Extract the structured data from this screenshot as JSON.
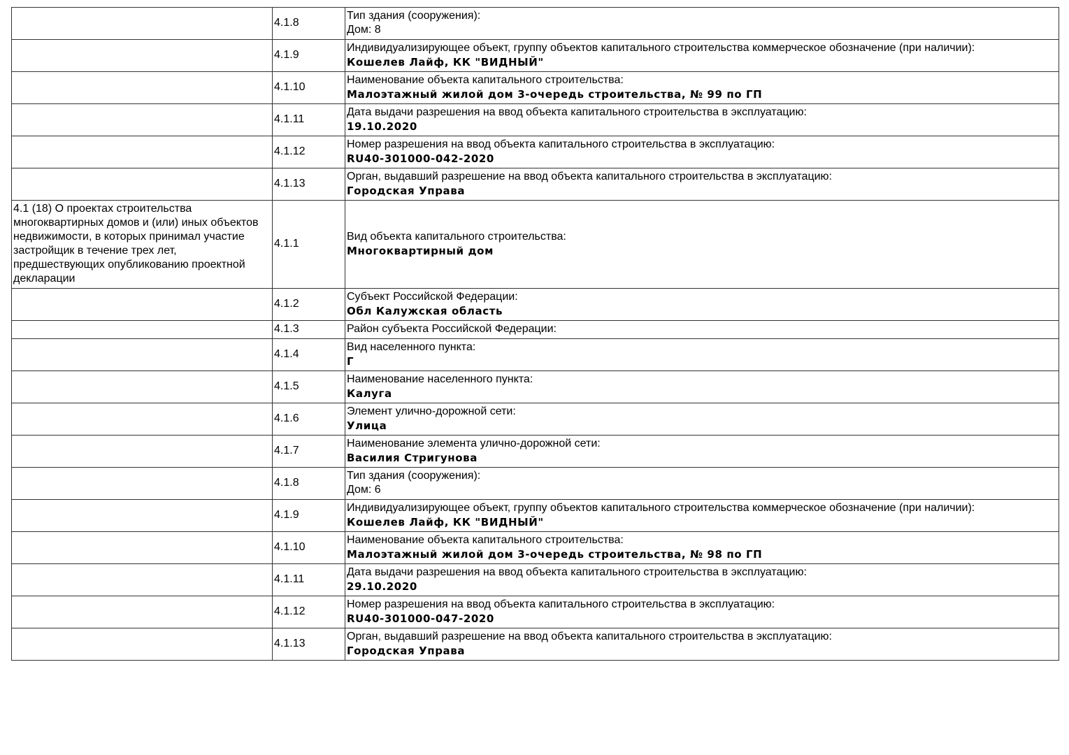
{
  "rows": [
    {
      "section": "",
      "code": "4.1.8",
      "label": "Тип здания (сооружения):",
      "value": "Дом: 8",
      "plain": true
    },
    {
      "section": "",
      "code": "4.1.9",
      "label": "Индивидуализирующее объект, группу объектов капитального строительства коммерческое обозначение (при наличии):",
      "value": "Кошелев Лайф, КК \"ВИДНЫЙ\""
    },
    {
      "section": "",
      "code": "4.1.10",
      "label": "Наименование объекта капитального строительства:",
      "value": "Малоэтажный жилой дом 3-очередь строительства, № 99 по ГП"
    },
    {
      "section": "",
      "code": "4.1.11",
      "label": "Дата выдачи разрешения на ввод объекта капитального строительства в эксплуатацию:",
      "value": "19.10.2020"
    },
    {
      "section": "",
      "code": "4.1.12",
      "label": "Номер разрешения на ввод объекта капитального строительства в эксплуатацию:",
      "value": "RU40-301000-042-2020"
    },
    {
      "section": "",
      "code": "4.1.13",
      "label": "Орган, выдавший разрешение на ввод объекта капитального строительства в эксплуатацию:",
      "value": "Городская Управа"
    },
    {
      "section": "4.1 (18) О проектах строительства многоквартирных домов и (или) иных объектов недвижимости, в которых принимал участие застройщик в течение трех лет, предшествующих опубликованию проектной декларации",
      "code": "4.1.1",
      "label": "Вид объекта капитального строительства:",
      "value": "Многоквартирный дом"
    },
    {
      "section": "",
      "code": "4.1.2",
      "label": "Субъект Российской Федерации:",
      "value": "Обл Калужская область"
    },
    {
      "section": "",
      "code": "4.1.3",
      "label": "Район субъекта Российской Федерации:",
      "value": ""
    },
    {
      "section": "",
      "code": "4.1.4",
      "label": "Вид населенного пункта:",
      "value": "Г"
    },
    {
      "section": "",
      "code": "4.1.5",
      "label": "Наименование населенного пункта:",
      "value": "Калуга"
    },
    {
      "section": "",
      "code": "4.1.6",
      "label": "Элемент улично-дорожной сети:",
      "value": "Улица"
    },
    {
      "section": "",
      "code": "4.1.7",
      "label": "Наименование элемента улично-дорожной сети:",
      "value": "Василия Стригунова"
    },
    {
      "section": "",
      "code": "4.1.8",
      "label": "Тип здания (сооружения):",
      "value": "Дом: 6",
      "plain": true
    },
    {
      "section": "",
      "code": "4.1.9",
      "label": "Индивидуализирующее объект, группу объектов капитального строительства коммерческое обозначение (при наличии):",
      "value": "Кошелев Лайф, КК \"ВИДНЫЙ\""
    },
    {
      "section": "",
      "code": "4.1.10",
      "label": "Наименование объекта капитального строительства:",
      "value": "Малоэтажный жилой дом 3-очередь строительства, № 98 по ГП"
    },
    {
      "section": "",
      "code": "4.1.11",
      "label": "Дата выдачи разрешения на ввод объекта капитального строительства в эксплуатацию:",
      "value": "29.10.2020"
    },
    {
      "section": "",
      "code": "4.1.12",
      "label": "Номер разрешения на ввод объекта капитального строительства в эксплуатацию:",
      "value": "RU40-301000-047-2020"
    },
    {
      "section": "",
      "code": "4.1.13",
      "label": "Орган, выдавший разрешение на ввод объекта капитального строительства в эксплуатацию:",
      "value": "Городская Управа"
    }
  ]
}
